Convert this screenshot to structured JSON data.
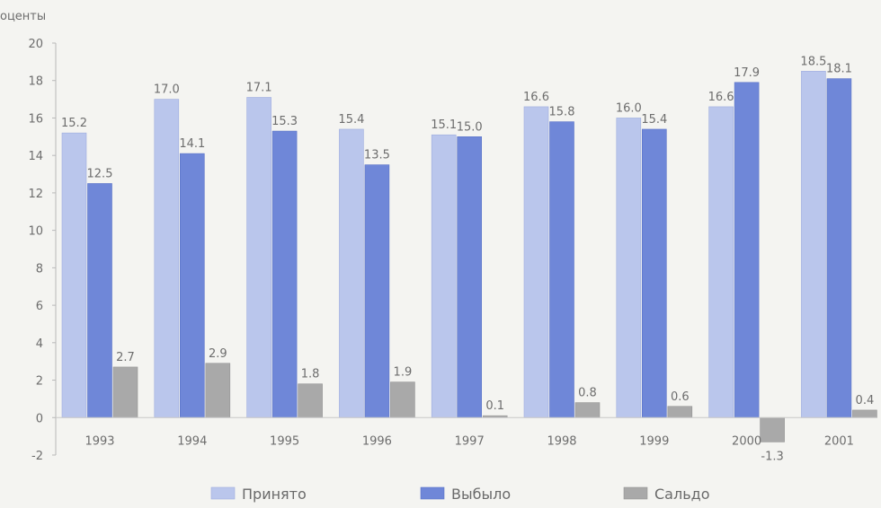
{
  "chart_data": {
    "type": "bar",
    "ylabel": "оценты",
    "ylim": [
      -2,
      20
    ],
    "yticks": [
      -2,
      0,
      2,
      4,
      6,
      8,
      10,
      12,
      14,
      16,
      18,
      20
    ],
    "categories": [
      "1993",
      "1994",
      "1995",
      "1996",
      "1997",
      "1998",
      "1999",
      "2000",
      "2001"
    ],
    "series": [
      {
        "name": "Принято",
        "color": "#bac6ec",
        "values": [
          15.2,
          17.0,
          17.1,
          15.4,
          15.1,
          16.6,
          16.0,
          16.6,
          18.5
        ],
        "labels": [
          "15.2",
          "17.0",
          "17.1",
          "15.4",
          "15.1",
          "16.6",
          "16.0",
          "16.6",
          "18.5"
        ]
      },
      {
        "name": "Выбыло",
        "color": "#6f87d8",
        "values": [
          12.5,
          14.1,
          15.3,
          13.5,
          15.0,
          15.8,
          15.4,
          17.9,
          18.1
        ],
        "labels": [
          "12.5",
          "14.1",
          "15.3",
          "13.5",
          "15.0",
          "15.8",
          "15.4",
          "17.9",
          "18.1"
        ]
      },
      {
        "name": "Сальдо",
        "color": "#a9a9a9",
        "values": [
          2.7,
          2.9,
          1.8,
          1.9,
          0.1,
          0.8,
          0.6,
          -1.3,
          0.4
        ],
        "labels": [
          "2.7",
          "2.9",
          "1.8",
          "1.9",
          "0.1",
          "0.8",
          "0.6",
          "-1.3",
          "0.4"
        ]
      }
    ],
    "grid": false,
    "legend": "bottom"
  }
}
